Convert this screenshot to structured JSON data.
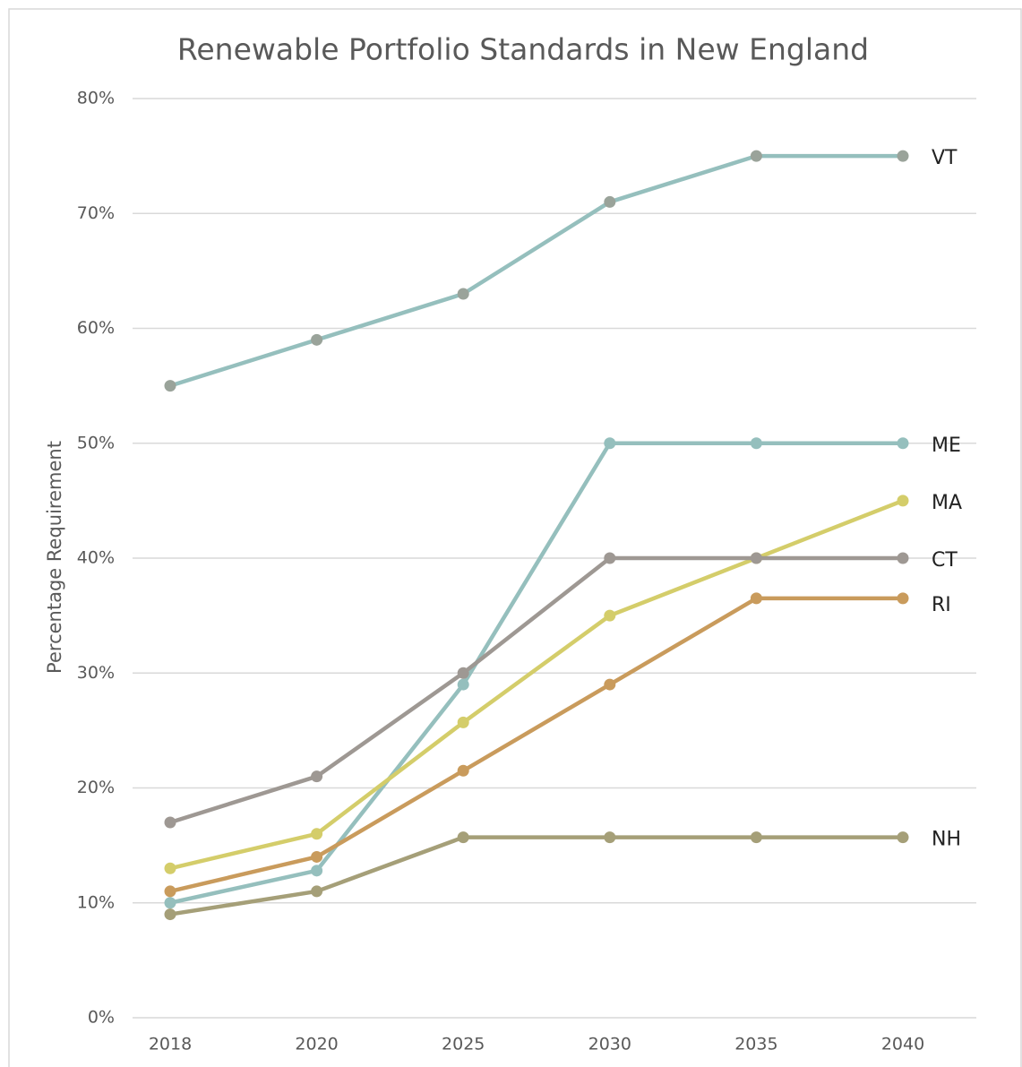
{
  "chart_data": {
    "type": "line",
    "title": "Renewable Portfolio Standards in New England",
    "y_label": "Percentage Requirement",
    "categories": [
      "2018",
      "2020",
      "2025",
      "2030",
      "2035",
      "2040"
    ],
    "series": [
      {
        "name": "VT",
        "color": "#95bfbd",
        "marker_color": "#9aa39a",
        "values": [
          55,
          59,
          63,
          71,
          75,
          75
        ]
      },
      {
        "name": "ME",
        "color": "#95bfbd",
        "values": [
          10,
          12.8,
          29,
          50,
          50,
          50
        ]
      },
      {
        "name": "MA",
        "color": "#d4cd6a",
        "values": [
          13,
          16,
          25.7,
          35,
          40,
          45
        ]
      },
      {
        "name": "CT",
        "color": "#9e9893",
        "values": [
          17,
          21,
          30,
          40,
          40,
          40
        ]
      },
      {
        "name": "RI",
        "color": "#c99b5c",
        "values": [
          11,
          14,
          21.5,
          29,
          36.5,
          36.5
        ]
      },
      {
        "name": "NH",
        "color": "#a59f78",
        "values": [
          9,
          11,
          15.7,
          15.7,
          15.7,
          15.7
        ]
      }
    ],
    "ylim": [
      0,
      80
    ],
    "yticks": [
      {
        "value": 0,
        "label": "0%"
      },
      {
        "value": 10,
        "label": "10%"
      },
      {
        "value": 20,
        "label": "20%"
      },
      {
        "value": 30,
        "label": "30%"
      },
      {
        "value": 40,
        "label": "40%"
      },
      {
        "value": 50,
        "label": "50%"
      },
      {
        "value": 60,
        "label": "60%"
      },
      {
        "value": 70,
        "label": "70%"
      },
      {
        "value": 80,
        "label": "80%"
      }
    ],
    "grid": true
  }
}
